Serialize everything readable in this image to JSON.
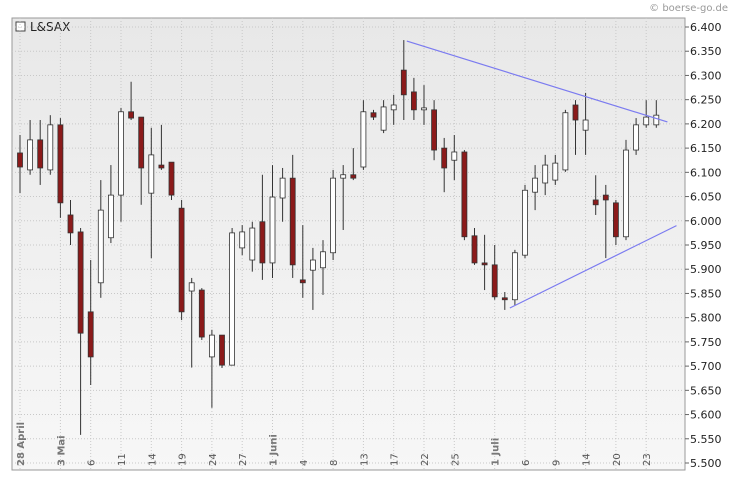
{
  "chart_data": {
    "type": "candlestick",
    "title": "L&SAX",
    "watermark": "© boerse-go.de",
    "categories": [
      "28 April",
      null,
      null,
      null,
      "3 Mai",
      null,
      null,
      "6",
      null,
      null,
      "11",
      null,
      null,
      "14",
      null,
      null,
      "19",
      null,
      null,
      "24",
      null,
      null,
      "27",
      null,
      null,
      "1 Juni",
      null,
      null,
      "4",
      null,
      null,
      "8",
      null,
      null,
      "13",
      null,
      null,
      "17",
      null,
      null,
      "22",
      null,
      null,
      "25",
      null,
      null,
      null,
      "1 Juli",
      null,
      null,
      "6",
      null,
      null,
      "9",
      null,
      null,
      "14",
      null,
      null,
      "20",
      null,
      null,
      "23",
      null
    ],
    "open": [
      6140,
      6105,
      6167,
      6105,
      6198,
      6012,
      5977,
      5812,
      5872,
      5965,
      6053,
      6225,
      6214,
      6057,
      6115,
      6121,
      6026,
      5855,
      5857,
      5719,
      5764,
      5702,
      5944,
      5919,
      5998,
      5913,
      6047,
      6088,
      5878,
      5898,
      5903,
      5934,
      6088,
      6095,
      6111,
      6223,
      6187,
      6229,
      6311,
      6266,
      6229,
      6229,
      6150,
      6125,
      6142,
      5969,
      5913,
      5909,
      5841,
      5837,
      5929,
      6059,
      6078,
      6084,
      6105,
      6239,
      6187,
      6043,
      6053,
      6037,
      5967,
      6146,
      6198,
      6198
    ],
    "high": [
      6177,
      6208,
      6208,
      6218,
      6212,
      6043,
      5985,
      5919,
      6084,
      6115,
      6233,
      6287,
      6214,
      6192,
      6198,
      6121,
      6043,
      5882,
      5861,
      5775,
      5764,
      5985,
      5991,
      5998,
      6095,
      6115,
      6109,
      6136,
      5991,
      5944,
      5960,
      6105,
      6115,
      6150,
      6249,
      6229,
      6249,
      6260,
      6373,
      6295,
      6280,
      6249,
      6171,
      6177,
      6146,
      5985,
      5971,
      5950,
      5853,
      5940,
      6074,
      6115,
      6136,
      6136,
      6229,
      6249,
      6264,
      6094,
      6074,
      6043,
      6167,
      6212,
      6249,
      6249
    ],
    "low": [
      6057,
      6095,
      6074,
      6095,
      6006,
      5950,
      5558,
      5661,
      5841,
      5954,
      5998,
      6208,
      6033,
      5923,
      6105,
      6043,
      5795,
      5697,
      5754,
      5614,
      5696,
      5702,
      5929,
      5895,
      5878,
      5882,
      5998,
      5882,
      5841,
      5816,
      5847,
      5919,
      5981,
      6084,
      6105,
      6208,
      6181,
      6198,
      6208,
      6208,
      6198,
      6125,
      6059,
      6084,
      5960,
      5909,
      5857,
      5837,
      5816,
      5826,
      5923,
      6022,
      6053,
      6074,
      6101,
      6136,
      6136,
      6012,
      5923,
      5950,
      5960,
      6136,
      6192,
      6192
    ],
    "close": [
      6111,
      6167,
      6109,
      6198,
      6037,
      5975,
      5768,
      5719,
      6022,
      6053,
      6225,
      6212,
      6109,
      6136,
      6109,
      6053,
      5812,
      5872,
      5760,
      5764,
      5702,
      5975,
      5977,
      5985,
      5913,
      6049,
      6088,
      5909,
      5872,
      5919,
      5936,
      6088,
      6095,
      6088,
      6225,
      6214,
      6235,
      6239,
      6260,
      6229,
      6233,
      6146,
      6109,
      6142,
      5967,
      5913,
      5909,
      5843,
      5837,
      5934,
      6063,
      6088,
      6115,
      6119,
      6223,
      6208,
      6208,
      6033,
      6043,
      5967,
      6146,
      6198,
      6214,
      6218
    ],
    "up_color": "#ffffff",
    "down_color": "#8b1a1a",
    "trendlines": [
      {
        "x": [
          38.3,
          64.1
        ],
        "y": [
          6371,
          6204
        ],
        "color": "#7b7bf0"
      },
      {
        "x": [
          48.5,
          65
        ],
        "y": [
          5820,
          5990
        ],
        "color": "#7b7bf0"
      }
    ],
    "ylim": [
      5500,
      6430
    ],
    "yticks": [
      {
        "value": 5500,
        "label": "5.500"
      },
      {
        "value": 5550,
        "label": "5.550"
      },
      {
        "value": 5600,
        "label": "5.600"
      },
      {
        "value": 5650,
        "label": "5.650"
      },
      {
        "value": 5700,
        "label": "5.700"
      },
      {
        "value": 5750,
        "label": "5.750"
      },
      {
        "value": 5800,
        "label": "5.800"
      },
      {
        "value": 5850,
        "label": "5.850"
      },
      {
        "value": 5900,
        "label": "5.900"
      },
      {
        "value": 5950,
        "label": "5.950"
      },
      {
        "value": 6000,
        "label": "6.000"
      },
      {
        "value": 6050,
        "label": "6.050"
      },
      {
        "value": 6100,
        "label": "6.100"
      },
      {
        "value": 6150,
        "label": "6.150"
      },
      {
        "value": 6200,
        "label": "6.200"
      },
      {
        "value": 6250,
        "label": "6.250"
      },
      {
        "value": 6300,
        "label": "6.300"
      },
      {
        "value": 6350,
        "label": "6.350"
      },
      {
        "value": 6400,
        "label": "6.400"
      }
    ],
    "grid": true
  }
}
